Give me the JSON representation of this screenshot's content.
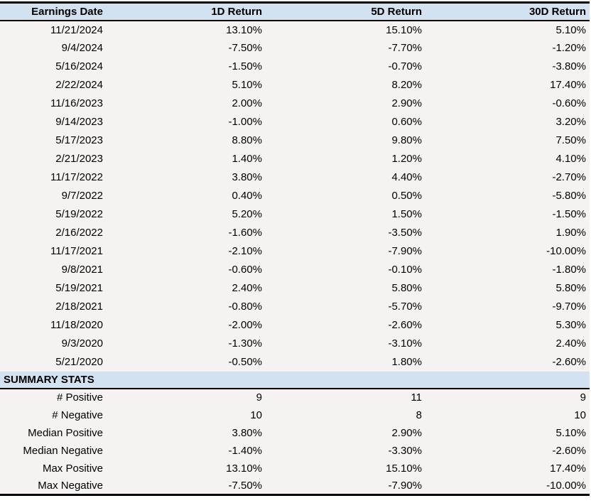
{
  "colors": {
    "header_bg": "#d2e2f0",
    "body_bg": "#f4f3f1",
    "border": "#000000",
    "text": "#000000"
  },
  "chart_data": {
    "type": "table",
    "columns": [
      "Earnings Date",
      "1D Return",
      "5D Return",
      "30D Return"
    ],
    "rows": [
      [
        "11/21/2024",
        "13.10%",
        "15.10%",
        "5.10%"
      ],
      [
        "9/4/2024",
        "-7.50%",
        "-7.70%",
        "-1.20%"
      ],
      [
        "5/16/2024",
        "-1.50%",
        "-0.70%",
        "-3.80%"
      ],
      [
        "2/22/2024",
        "5.10%",
        "8.20%",
        "17.40%"
      ],
      [
        "11/16/2023",
        "2.00%",
        "2.90%",
        "-0.60%"
      ],
      [
        "9/14/2023",
        "-1.00%",
        "0.60%",
        "3.20%"
      ],
      [
        "5/17/2023",
        "8.80%",
        "9.80%",
        "7.50%"
      ],
      [
        "2/21/2023",
        "1.40%",
        "1.20%",
        "4.10%"
      ],
      [
        "11/17/2022",
        "3.80%",
        "4.40%",
        "-2.70%"
      ],
      [
        "9/7/2022",
        "0.40%",
        "0.50%",
        "-5.80%"
      ],
      [
        "5/19/2022",
        "5.20%",
        "1.50%",
        "-1.50%"
      ],
      [
        "2/16/2022",
        "-1.60%",
        "-3.50%",
        "1.90%"
      ],
      [
        "11/17/2021",
        "-2.10%",
        "-7.90%",
        "-10.00%"
      ],
      [
        "9/8/2021",
        "-0.60%",
        "-0.10%",
        "-1.80%"
      ],
      [
        "5/19/2021",
        "2.40%",
        "5.80%",
        "5.80%"
      ],
      [
        "2/18/2021",
        "-0.80%",
        "-5.70%",
        "-9.70%"
      ],
      [
        "11/18/2020",
        "-2.00%",
        "-2.60%",
        "5.30%"
      ],
      [
        "9/3/2020",
        "-1.30%",
        "-3.10%",
        "2.40%"
      ],
      [
        "5/21/2020",
        "-0.50%",
        "1.80%",
        "-2.60%"
      ]
    ],
    "summary_section_label": "SUMMARY STATS",
    "summary_rows": [
      [
        "# Positive",
        "9",
        "11",
        "9"
      ],
      [
        "# Negative",
        "10",
        "8",
        "10"
      ],
      [
        "Median Positive",
        "3.80%",
        "2.90%",
        "5.10%"
      ],
      [
        "Median Negative",
        "-1.40%",
        "-3.30%",
        "-2.60%"
      ],
      [
        "Max Positive",
        "13.10%",
        "15.10%",
        "17.40%"
      ],
      [
        "Max Negative",
        "-7.50%",
        "-7.90%",
        "-10.00%"
      ]
    ]
  }
}
